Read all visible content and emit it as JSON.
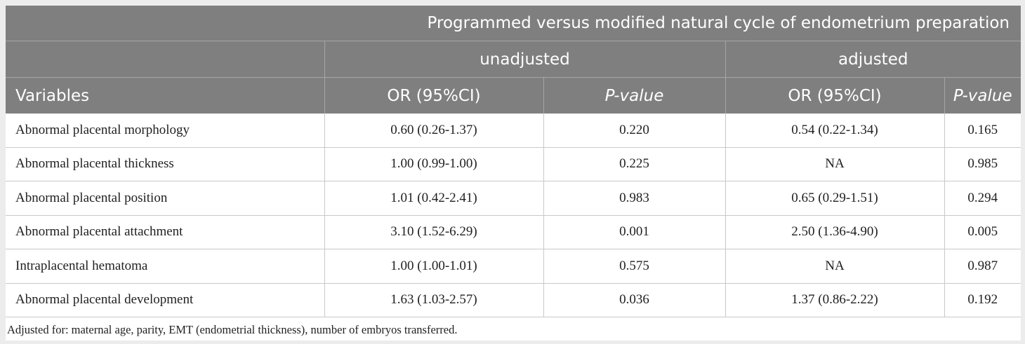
{
  "table": {
    "group_header": "Programmed versus modified natural cycle of endometrium preparation",
    "subgroups": {
      "unadjusted": "unadjusted",
      "adjusted": "adjusted"
    },
    "columns": {
      "variables": "Variables",
      "or_unadj": "OR (95%CI)",
      "p_unadj": "P-value",
      "or_adj": "OR (95%CI)",
      "p_adj": "P-value"
    },
    "rows": [
      {
        "variable": "Abnormal placental morphology",
        "or_unadj": "0.60 (0.26-1.37)",
        "p_unadj": "0.220",
        "or_adj": "0.54 (0.22-1.34)",
        "p_adj": "0.165"
      },
      {
        "variable": "Abnormal placental thickness",
        "or_unadj": "1.00 (0.99-1.00)",
        "p_unadj": "0.225",
        "or_adj": "NA",
        "p_adj": "0.985"
      },
      {
        "variable": "Abnormal placental position",
        "or_unadj": "1.01 (0.42-2.41)",
        "p_unadj": "0.983",
        "or_adj": "0.65 (0.29-1.51)",
        "p_adj": "0.294"
      },
      {
        "variable": "Abnormal placental attachment",
        "or_unadj": "3.10 (1.52-6.29)",
        "p_unadj": "0.001",
        "or_adj": "2.50 (1.36-4.90)",
        "p_adj": "0.005"
      },
      {
        "variable": "Intraplacental hematoma",
        "or_unadj": "1.00 (1.00-1.01)",
        "p_unadj": "0.575",
        "or_adj": "NA",
        "p_adj": "0.987"
      },
      {
        "variable": "Abnormal placental development",
        "or_unadj": "1.63 (1.03-2.57)",
        "p_unadj": "0.036",
        "or_adj": "1.37 (0.86-2.22)",
        "p_adj": "0.192"
      }
    ],
    "footnote": "Adjusted for: maternal age, parity, EMT (endometrial thickness), number of embryos transferred."
  },
  "colors": {
    "header_bg": "#7f7f7f",
    "header_text": "#ffffff",
    "page_bg": "#ececec"
  }
}
